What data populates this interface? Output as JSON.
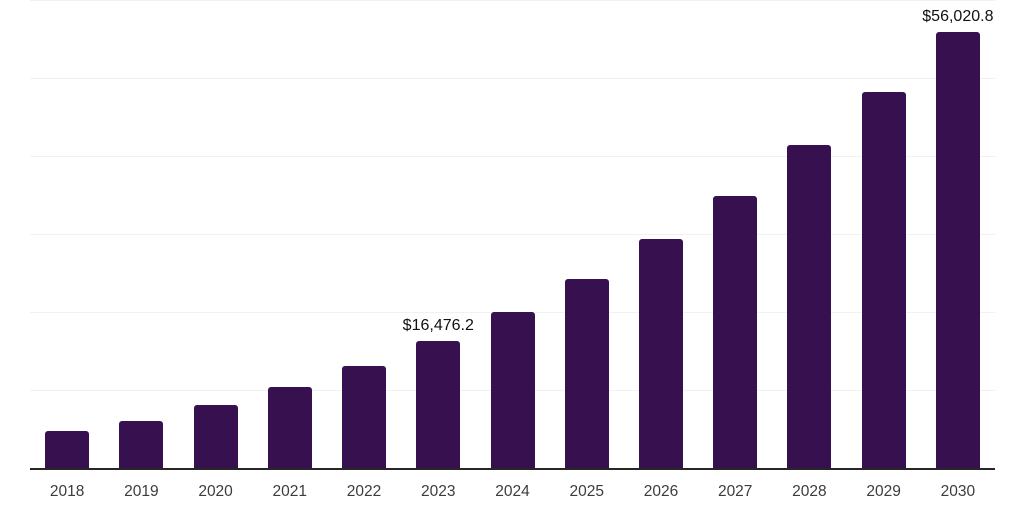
{
  "chart_data": {
    "type": "bar",
    "title": "",
    "xlabel": "",
    "ylabel": "",
    "categories": [
      "2018",
      "2019",
      "2020",
      "2021",
      "2022",
      "2023",
      "2024",
      "2025",
      "2026",
      "2027",
      "2028",
      "2029",
      "2030"
    ],
    "values": [
      4900,
      6190,
      8240,
      10550,
      13200,
      16476.2,
      20160,
      24400,
      29450,
      35000,
      41500,
      48330,
      56020.8
    ],
    "data_labels": [
      "",
      "",
      "",
      "",
      "",
      "$16,476.2",
      "",
      "",
      "",
      "",
      "",
      "",
      "$56,020.8"
    ],
    "ylim": [
      0,
      60000
    ],
    "gridline_interval": 10000,
    "grid": true,
    "legend": false,
    "y_tick_labels_visible": false,
    "colors": {
      "bar": "#37114F",
      "axis_line": "#262626",
      "gridline": "#f1f1f1",
      "tick_label": "#3c3c3c",
      "data_label": "#111111",
      "background": "#ffffff"
    }
  }
}
